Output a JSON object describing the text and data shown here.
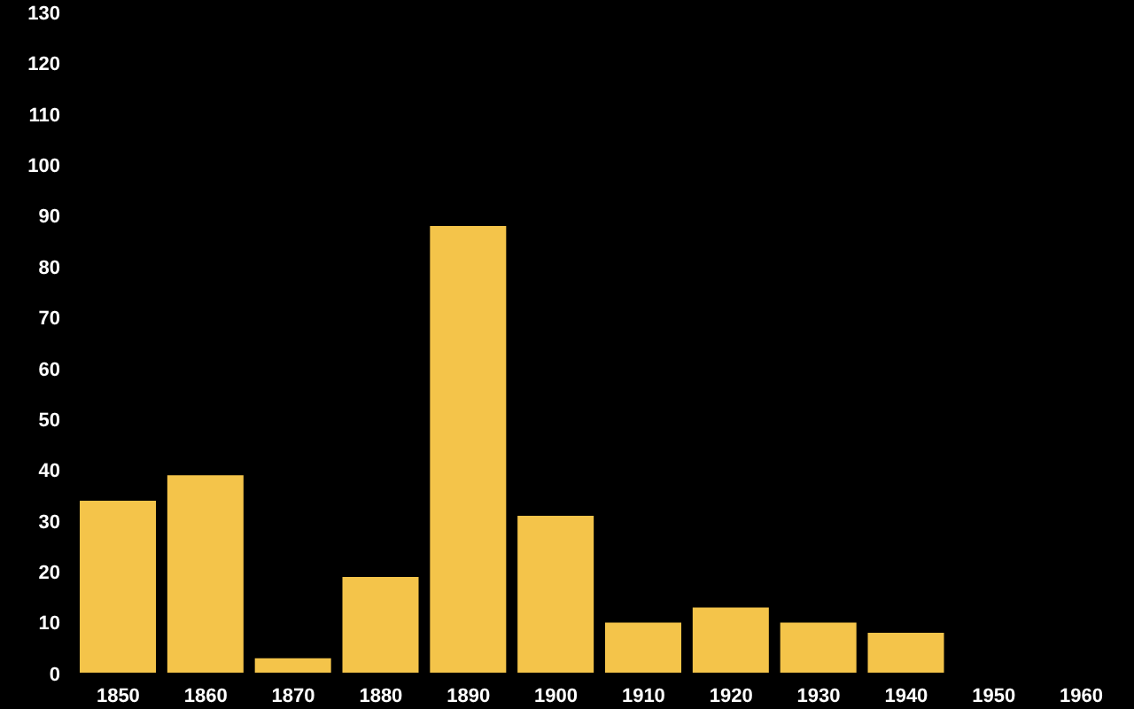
{
  "chart_data": {
    "type": "bar",
    "categories": [
      "1850",
      "1860",
      "1870",
      "1880",
      "1890",
      "1900",
      "1910",
      "1920",
      "1930",
      "1940",
      "1950",
      "1960"
    ],
    "values": [
      34,
      39,
      3,
      19,
      88,
      31,
      10,
      13,
      10,
      8,
      0,
      0
    ],
    "color": "#f4c44a",
    "ylim": [
      0,
      130
    ],
    "yticks": [
      0,
      10,
      20,
      30,
      40,
      50,
      60,
      70,
      80,
      90,
      100,
      110,
      120,
      130
    ],
    "grid": false
  }
}
